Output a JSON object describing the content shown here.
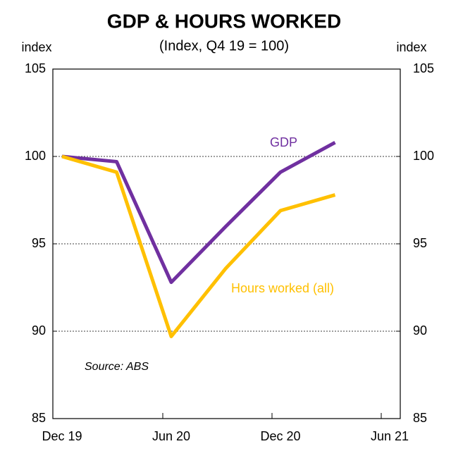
{
  "chart_data": {
    "type": "line",
    "title": "GDP & HOURS WORKED",
    "subtitle": "(Index, Q4 19 = 100)",
    "y_label": "index",
    "y2_label": "index",
    "categories": [
      "Dec 19",
      null,
      "Jun 20",
      null,
      "Dec 20",
      null,
      "Jun 21"
    ],
    "series": [
      {
        "name": "GDP",
        "color": "#7030a0",
        "values": [
          100,
          99.7,
          92.8,
          96.0,
          99.1,
          100.8,
          null
        ]
      },
      {
        "name": "Hours worked (all)",
        "color": "#ffc000",
        "values": [
          100,
          99.1,
          89.7,
          93.6,
          96.9,
          97.8,
          null
        ]
      }
    ],
    "ylim": [
      85,
      105
    ],
    "yticks": [
      85,
      90,
      95,
      100,
      105
    ],
    "y2lim": [
      85,
      105
    ],
    "y2ticks": [
      85,
      90,
      95,
      100,
      105
    ],
    "grid": true,
    "source": "Source: ABS"
  }
}
